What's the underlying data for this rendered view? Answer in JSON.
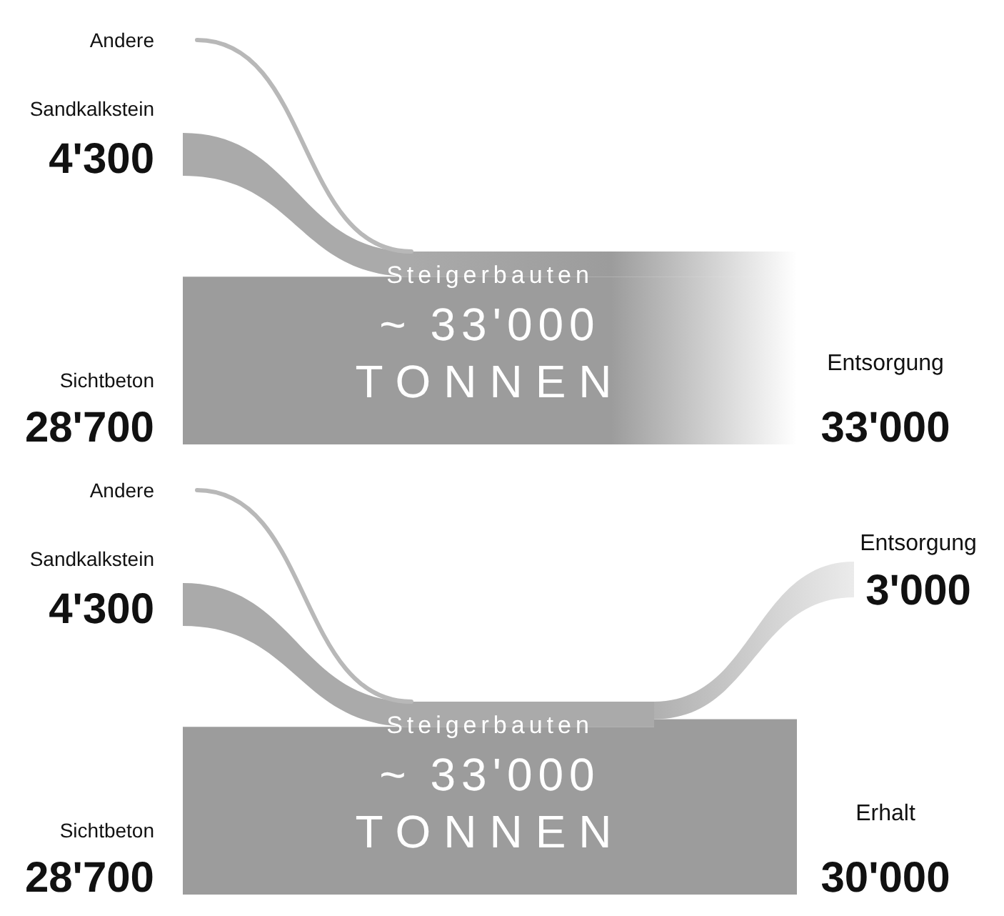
{
  "chart_data": [
    {
      "type": "other",
      "title": "Steigerbauten",
      "subtitle": "~ 33'000",
      "annotations": [
        "TONNEN"
      ],
      "categories": [
        "Andere",
        "Sandkalkstein",
        "Sichtbeton",
        "Entsorgung"
      ],
      "colors": [
        "#b8b8b8",
        "#aaaaaa",
        "#9c9c9c",
        "#9c9c9c"
      ],
      "series": [
        {
          "values": [
            null,
            4300,
            28700,
            null
          ],
          "value_labels": [
            null,
            "4'300",
            "28'700",
            null
          ]
        },
        {
          "values": [
            null,
            null,
            null,
            33000
          ],
          "value_labels": [
            null,
            null,
            null,
            "33'000"
          ]
        }
      ]
    },
    {
      "type": "other",
      "title": "Steigerbauten",
      "subtitle": "~ 33'000",
      "annotations": [
        "TONNEN"
      ],
      "categories": [
        "Andere",
        "Sandkalkstein",
        "Sichtbeton",
        "Entsorgung",
        "Erhalt"
      ],
      "colors": [
        "#b8b8b8",
        "#aaaaaa",
        "#9c9c9c",
        "#b0b0b0",
        "#9c9c9c"
      ],
      "series": [
        {
          "values": [
            null,
            4300,
            28700,
            null,
            null
          ],
          "value_labels": [
            null,
            "4'300",
            "28'700",
            null,
            null
          ]
        },
        {
          "values": [
            null,
            null,
            null,
            3000,
            30000
          ],
          "value_labels": [
            null,
            null,
            null,
            "3'000",
            "30'000"
          ]
        }
      ]
    }
  ]
}
